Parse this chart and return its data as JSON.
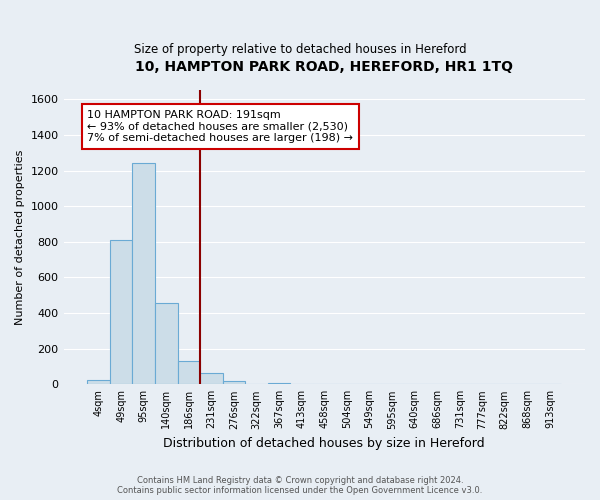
{
  "title": "10, HAMPTON PARK ROAD, HEREFORD, HR1 1TQ",
  "subtitle": "Size of property relative to detached houses in Hereford",
  "xlabel": "Distribution of detached houses by size in Hereford",
  "ylabel": "Number of detached properties",
  "bar_labels": [
    "4sqm",
    "49sqm",
    "95sqm",
    "140sqm",
    "186sqm",
    "231sqm",
    "276sqm",
    "322sqm",
    "367sqm",
    "413sqm",
    "458sqm",
    "504sqm",
    "549sqm",
    "595sqm",
    "640sqm",
    "686sqm",
    "731sqm",
    "777sqm",
    "822sqm",
    "868sqm",
    "913sqm"
  ],
  "bar_values": [
    25,
    810,
    1240,
    455,
    130,
    65,
    20,
    0,
    10,
    0,
    0,
    0,
    0,
    0,
    0,
    0,
    0,
    0,
    0,
    0,
    0
  ],
  "bar_color": "#ccdde8",
  "bar_edge_color": "#6aaad4",
  "vline_color": "#8b0000",
  "ylim": [
    0,
    1650
  ],
  "yticks": [
    0,
    200,
    400,
    600,
    800,
    1000,
    1200,
    1400,
    1600
  ],
  "annotation_line1": "10 HAMPTON PARK ROAD: 191sqm",
  "annotation_line2": "← 93% of detached houses are smaller (2,530)",
  "annotation_line3": "7% of semi-detached houses are larger (198) →",
  "annotation_box_color": "#ffffff",
  "annotation_box_edge": "#cc0000",
  "footer_line1": "Contains HM Land Registry data © Crown copyright and database right 2024.",
  "footer_line2": "Contains public sector information licensed under the Open Government Licence v3.0.",
  "background_color": "#e8eef4",
  "grid_color": "#ffffff",
  "title_fontsize": 10,
  "subtitle_fontsize": 8.5,
  "xlabel_fontsize": 9,
  "ylabel_fontsize": 8,
  "ytick_fontsize": 8,
  "xtick_fontsize": 7,
  "footer_fontsize": 6,
  "annotation_fontsize": 8
}
